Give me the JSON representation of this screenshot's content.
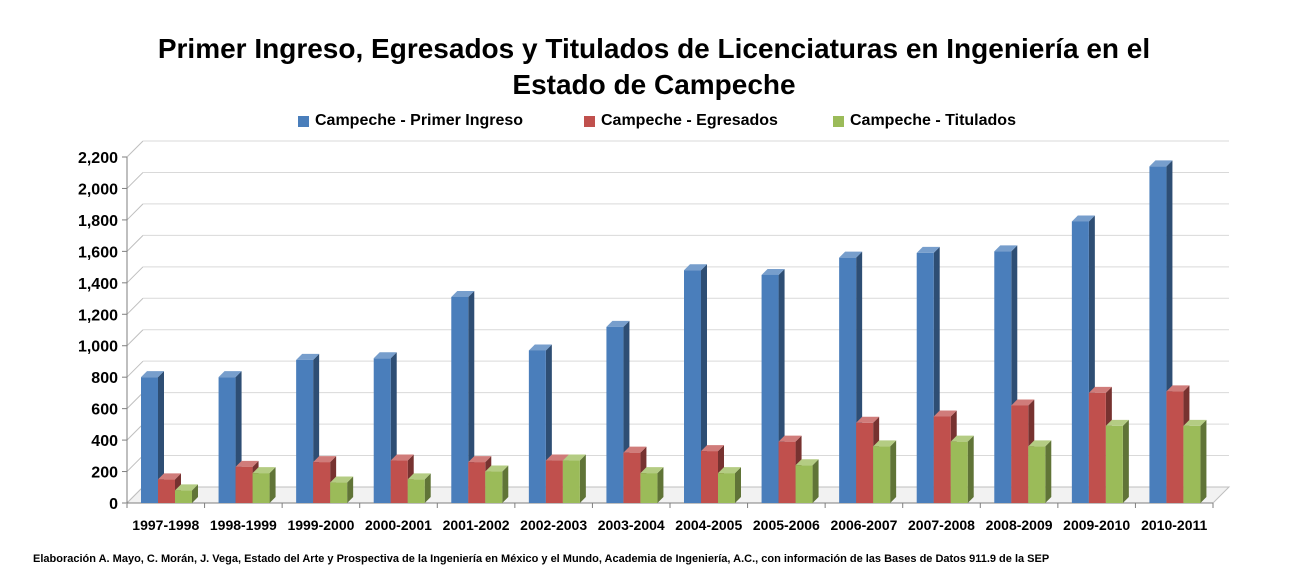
{
  "title_line1": "Primer Ingreso, Egresados y Titulados de Licenciaturas en Ingeniería en el",
  "title_line2": "Estado de Campeche",
  "footnote": "Elaboración A. Mayo, C. Morán, J. Vega, Estado del Arte y Prospectiva de la Ingeniería en México y el Mundo, Academia de Ingeniería, A.C., con información de las Bases de Datos  911.9  de la SEP",
  "chart_data": {
    "type": "bar",
    "title": "Primer Ingreso, Egresados y Titulados de Licenciaturas en Ingeniería en el Estado de Campeche",
    "xlabel": "",
    "ylabel": "",
    "ylim": [
      0,
      2200
    ],
    "y_ticks": [
      0,
      200,
      400,
      600,
      800,
      1000,
      1200,
      1400,
      1600,
      1800,
      2000,
      2200
    ],
    "y_tick_labels": [
      "0",
      "200",
      "400",
      "600",
      "800",
      "1,000",
      "1,200",
      "1,400",
      "1,600",
      "1,800",
      "2,000",
      "2,200"
    ],
    "grid": true,
    "legend_position": "top-center",
    "style": "3d-clustered-column",
    "categories": [
      "1997-1998",
      "1998-1999",
      "1999-2000",
      "2000-2001",
      "2001-2002",
      "2002-2003",
      "2003-2004",
      "2004-2005",
      "2005-2006",
      "2006-2007",
      "2007-2008",
      "2008-2009",
      "2009-2010",
      "2010-2011"
    ],
    "series": [
      {
        "name": "Campeche - Primer Ingreso",
        "color": "#4a7ebb",
        "values": [
          800,
          800,
          910,
          920,
          1310,
          970,
          1120,
          1480,
          1450,
          1560,
          1590,
          1600,
          1790,
          2140
        ]
      },
      {
        "name": "Campeche - Egresados",
        "color": "#c0504d",
        "values": [
          150,
          230,
          260,
          270,
          260,
          270,
          320,
          330,
          390,
          510,
          550,
          620,
          700,
          710
        ]
      },
      {
        "name": "Campeche - Titulados",
        "color": "#9bbb59",
        "values": [
          80,
          190,
          130,
          150,
          200,
          270,
          190,
          190,
          240,
          360,
          390,
          360,
          490,
          490
        ]
      }
    ]
  }
}
